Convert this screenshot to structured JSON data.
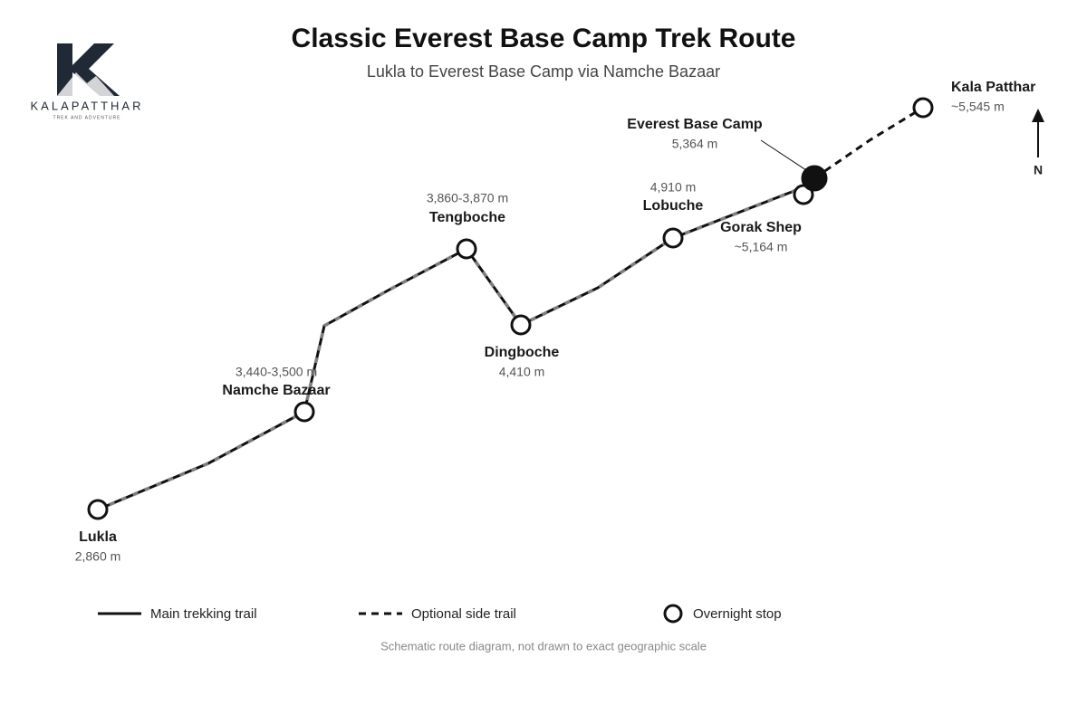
{
  "header": {
    "title": "Classic Everest Base Camp Trek Route",
    "subtitle": "Lukla to Everest Base Camp via Namche Bazaar"
  },
  "logo": {
    "name": "KALAPATTHAR",
    "tagline": "TREK AND ADVENTURE"
  },
  "nodes": [
    {
      "label": "Lukla",
      "elevation": "2,860 m"
    },
    {
      "label": "Namche Bazaar",
      "elevation": "3,440-3,500 m"
    },
    {
      "label": "Tengboche",
      "elevation": "3,860-3,870 m"
    },
    {
      "label": "Dingboche",
      "elevation": "4,410 m"
    },
    {
      "label": "Lobuche",
      "elevation": "4,910 m"
    },
    {
      "label": "Gorak Shep",
      "elevation": "~5,164 m"
    },
    {
      "label": "Everest Base Camp",
      "elevation": "5,364 m"
    },
    {
      "label": "Kala Patthar",
      "elevation": "~5,545 m"
    }
  ],
  "compass": "N",
  "legend": [
    {
      "label": "Main trekking trail"
    },
    {
      "label": "Optional side trail"
    },
    {
      "label": "Overnight stop"
    }
  ],
  "footnote": "Schematic route diagram, not drawn to exact geographic scale"
}
